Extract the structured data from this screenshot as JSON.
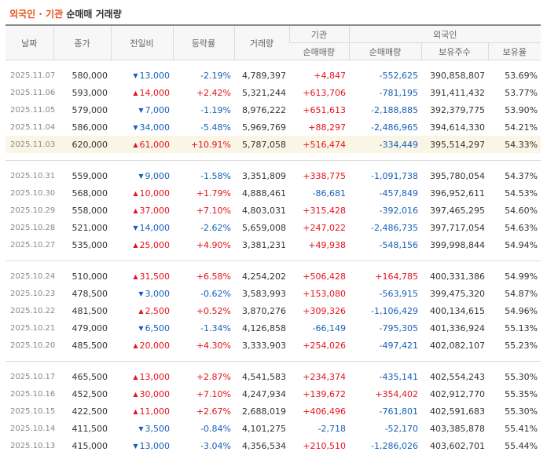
{
  "title": {
    "highlight": "외국인 · 기관",
    "rest": "순매매 거래량"
  },
  "headers": {
    "date": "날짜",
    "close": "종가",
    "change": "전일비",
    "rate": "등락률",
    "volume": "거래량",
    "institution": "기관",
    "foreign": "외국인",
    "inst_net": "순매매량",
    "foreign_net": "순매매량",
    "holdings": "보유주수",
    "ratio": "보유율"
  },
  "colors": {
    "up": "#e4141e",
    "down": "#1560b8",
    "highlight_row": "#f9f6e6"
  },
  "icons": {
    "up": "triangle-up-icon",
    "down": "triangle-down-icon"
  },
  "groups": [
    [
      {
        "date": "2025.11.07",
        "close": "580,000",
        "dir": "down",
        "change": "13,000",
        "rate": "-2.19%",
        "volume": "4,789,397",
        "inst": "+4,847",
        "foreign": "-552,625",
        "holdings": "390,858,807",
        "ratio": "53.69%"
      },
      {
        "date": "2025.11.06",
        "close": "593,000",
        "dir": "up",
        "change": "14,000",
        "rate": "+2.42%",
        "volume": "5,321,244",
        "inst": "+613,706",
        "foreign": "-781,195",
        "holdings": "391,411,432",
        "ratio": "53.77%"
      },
      {
        "date": "2025.11.05",
        "close": "579,000",
        "dir": "down",
        "change": "7,000",
        "rate": "-1.19%",
        "volume": "8,976,222",
        "inst": "+651,613",
        "foreign": "-2,188,885",
        "holdings": "392,379,775",
        "ratio": "53.90%"
      },
      {
        "date": "2025.11.04",
        "close": "586,000",
        "dir": "down",
        "change": "34,000",
        "rate": "-5.48%",
        "volume": "5,969,769",
        "inst": "+88,297",
        "foreign": "-2,486,965",
        "holdings": "394,614,330",
        "ratio": "54.21%"
      },
      {
        "date": "2025.11.03",
        "close": "620,000",
        "dir": "up",
        "change": "61,000",
        "rate": "+10.91%",
        "volume": "5,787,058",
        "inst": "+516,474",
        "foreign": "-334,449",
        "holdings": "395,514,297",
        "ratio": "54.33%",
        "highlight": true
      }
    ],
    [
      {
        "date": "2025.10.31",
        "close": "559,000",
        "dir": "down",
        "change": "9,000",
        "rate": "-1.58%",
        "volume": "3,351,809",
        "inst": "+338,775",
        "foreign": "-1,091,738",
        "holdings": "395,780,054",
        "ratio": "54.37%"
      },
      {
        "date": "2025.10.30",
        "close": "568,000",
        "dir": "up",
        "change": "10,000",
        "rate": "+1.79%",
        "volume": "4,888,461",
        "inst": "-86,681",
        "foreign": "-457,849",
        "holdings": "396,952,611",
        "ratio": "54.53%"
      },
      {
        "date": "2025.10.29",
        "close": "558,000",
        "dir": "up",
        "change": "37,000",
        "rate": "+7.10%",
        "volume": "4,803,031",
        "inst": "+315,428",
        "foreign": "-392,016",
        "holdings": "397,465,295",
        "ratio": "54.60%"
      },
      {
        "date": "2025.10.28",
        "close": "521,000",
        "dir": "down",
        "change": "14,000",
        "rate": "-2.62%",
        "volume": "5,659,008",
        "inst": "+247,022",
        "foreign": "-2,486,735",
        "holdings": "397,717,054",
        "ratio": "54.63%"
      },
      {
        "date": "2025.10.27",
        "close": "535,000",
        "dir": "up",
        "change": "25,000",
        "rate": "+4.90%",
        "volume": "3,381,231",
        "inst": "+49,938",
        "foreign": "-548,156",
        "holdings": "399,998,844",
        "ratio": "54.94%"
      }
    ],
    [
      {
        "date": "2025.10.24",
        "close": "510,000",
        "dir": "up",
        "change": "31,500",
        "rate": "+6.58%",
        "volume": "4,254,202",
        "inst": "+506,428",
        "foreign": "+164,785",
        "holdings": "400,331,386",
        "ratio": "54.99%"
      },
      {
        "date": "2025.10.23",
        "close": "478,500",
        "dir": "down",
        "change": "3,000",
        "rate": "-0.62%",
        "volume": "3,583,993",
        "inst": "+153,080",
        "foreign": "-563,915",
        "holdings": "399,475,320",
        "ratio": "54.87%"
      },
      {
        "date": "2025.10.22",
        "close": "481,500",
        "dir": "up",
        "change": "2,500",
        "rate": "+0.52%",
        "volume": "3,870,276",
        "inst": "+309,326",
        "foreign": "-1,106,429",
        "holdings": "400,134,615",
        "ratio": "54.96%"
      },
      {
        "date": "2025.10.21",
        "close": "479,000",
        "dir": "down",
        "change": "6,500",
        "rate": "-1.34%",
        "volume": "4,126,858",
        "inst": "-66,149",
        "foreign": "-795,305",
        "holdings": "401,336,924",
        "ratio": "55.13%"
      },
      {
        "date": "2025.10.20",
        "close": "485,500",
        "dir": "up",
        "change": "20,000",
        "rate": "+4.30%",
        "volume": "3,333,903",
        "inst": "+254,026",
        "foreign": "-497,421",
        "holdings": "402,082,107",
        "ratio": "55.23%"
      }
    ],
    [
      {
        "date": "2025.10.17",
        "close": "465,500",
        "dir": "up",
        "change": "13,000",
        "rate": "+2.87%",
        "volume": "4,541,583",
        "inst": "+234,374",
        "foreign": "-435,141",
        "holdings": "402,554,243",
        "ratio": "55.30%"
      },
      {
        "date": "2025.10.16",
        "close": "452,500",
        "dir": "up",
        "change": "30,000",
        "rate": "+7.10%",
        "volume": "4,247,934",
        "inst": "+139,672",
        "foreign": "+354,402",
        "holdings": "402,912,770",
        "ratio": "55.35%"
      },
      {
        "date": "2025.10.15",
        "close": "422,500",
        "dir": "up",
        "change": "11,000",
        "rate": "+2.67%",
        "volume": "2,688,019",
        "inst": "+406,496",
        "foreign": "-761,801",
        "holdings": "402,591,683",
        "ratio": "55.30%"
      },
      {
        "date": "2025.10.14",
        "close": "411,500",
        "dir": "down",
        "change": "3,500",
        "rate": "-0.84%",
        "volume": "4,101,275",
        "inst": "-2,718",
        "foreign": "-52,170",
        "holdings": "403,385,878",
        "ratio": "55.41%"
      },
      {
        "date": "2025.10.13",
        "close": "415,000",
        "dir": "down",
        "change": "13,000",
        "rate": "-3.04%",
        "volume": "4,356,534",
        "inst": "+210,510",
        "foreign": "-1,286,026",
        "holdings": "403,602,701",
        "ratio": "55.44%"
      }
    ]
  ]
}
